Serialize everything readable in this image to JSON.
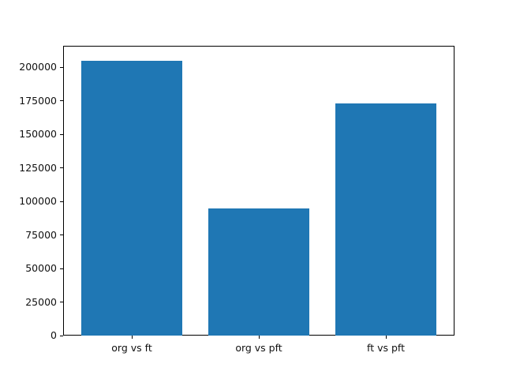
{
  "figure": {
    "background": "#ffffff",
    "text_color": "#111111",
    "spine_color": "#000000"
  },
  "chart_data": {
    "type": "bar",
    "categories": [
      "org vs ft",
      "org vs pft",
      "ft vs pft"
    ],
    "values": [
      204800,
      95000,
      173200
    ],
    "title": "",
    "xlabel": "",
    "ylabel": "",
    "ylim": [
      0,
      215900
    ],
    "yticks": [
      0,
      25000,
      50000,
      75000,
      100000,
      125000,
      150000,
      175000,
      200000
    ],
    "bar_color": "#1f77b4",
    "grid": false,
    "legend": "none"
  }
}
